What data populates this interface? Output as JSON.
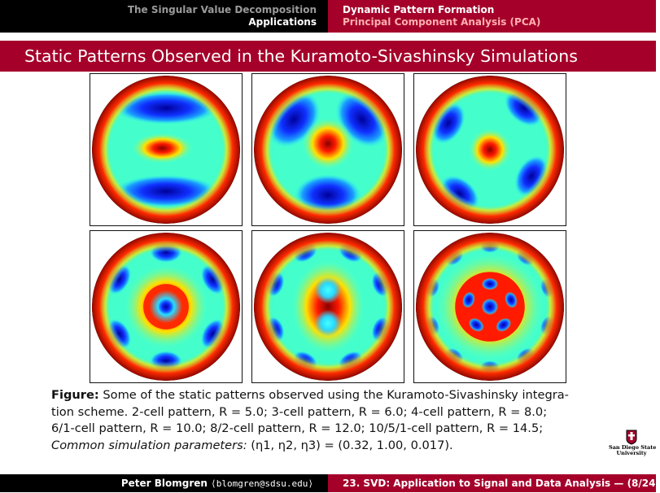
{
  "nav": {
    "section": "The Singular Value Decomposition",
    "subsection": "Applications",
    "topic": "Dynamic Pattern Formation",
    "subtopic": "Principal Component Analysis (PCA)"
  },
  "frame_title": "Static Patterns Observed in the Kuramoto-Sivashinsky Simulations",
  "figure": {
    "panels": [
      {
        "name": "2-cell pattern"
      },
      {
        "name": "3-cell pattern"
      },
      {
        "name": "4-cell pattern"
      },
      {
        "name": "6/1-cell pattern"
      },
      {
        "name": "8/2-cell pattern"
      },
      {
        "name": "10/5/1-cell pattern"
      }
    ]
  },
  "caption": {
    "label": "Figure:",
    "line1": " Some of the static patterns observed using the Kuramoto-Sivashinsky integra-",
    "line2": "tion scheme. 2-cell pattern, R = 5.0; 3-cell pattern, R = 6.0; 4-cell pattern, R = 8.0;",
    "line3": "6/1-cell pattern, R = 10.0; 8/2-cell pattern, R = 12.0; 10/5/1-cell pattern, R = 14.5;",
    "line4_label": "Common simulation parameters:",
    "line4_value": " (η1, η2, η3) = (0.32, 1.00, 0.017)."
  },
  "logo": {
    "line1": "San Diego State",
    "line2": "University"
  },
  "footer": {
    "author": "Peter Blomgren",
    "email": "⟨blomgren@sdsu.edu⟩",
    "slide_title": "23. SVD: Application to Signal and Data Analysis",
    "page": "— (8/24)"
  },
  "colors": {
    "header_black": "#000000",
    "accent_red": "#a5002a"
  }
}
